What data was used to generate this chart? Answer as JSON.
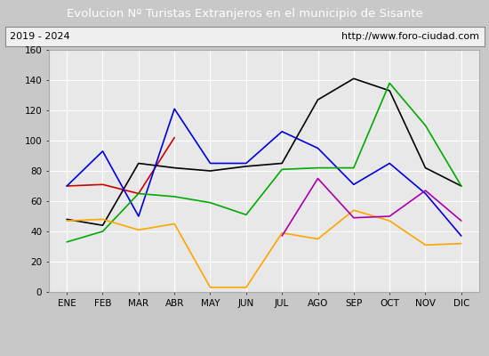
{
  "title": "Evolucion Nº Turistas Extranjeros en el municipio de Sisante",
  "subtitle_left": "2019 - 2024",
  "subtitle_right": "http://www.foro-ciudad.com",
  "months": [
    "ENE",
    "FEB",
    "MAR",
    "ABR",
    "MAY",
    "JUN",
    "JUL",
    "AGO",
    "SEP",
    "OCT",
    "NOV",
    "DIC"
  ],
  "ylim": [
    0,
    160
  ],
  "yticks": [
    0,
    20,
    40,
    60,
    80,
    100,
    120,
    140,
    160
  ],
  "series": {
    "2024": {
      "color": "#cc0000",
      "data": [
        70,
        71,
        65,
        102,
        null,
        null,
        null,
        null,
        null,
        null,
        null,
        null
      ]
    },
    "2023": {
      "color": "#000000",
      "data": [
        48,
        44,
        85,
        82,
        80,
        83,
        85,
        127,
        141,
        133,
        82,
        70
      ]
    },
    "2022": {
      "color": "#0000dd",
      "data": [
        70,
        93,
        50,
        121,
        85,
        85,
        106,
        95,
        71,
        85,
        65,
        37
      ]
    },
    "2021": {
      "color": "#00aa00",
      "data": [
        33,
        40,
        65,
        63,
        59,
        51,
        81,
        82,
        82,
        138,
        110,
        70
      ]
    },
    "2020": {
      "color": "#ffa500",
      "data": [
        47,
        48,
        41,
        45,
        3,
        3,
        39,
        35,
        54,
        47,
        31,
        32
      ]
    },
    "2019": {
      "color": "#aa00aa",
      "data": [
        null,
        null,
        null,
        null,
        null,
        null,
        37,
        75,
        49,
        50,
        67,
        47
      ]
    }
  },
  "title_bg": "#4472c4",
  "title_color": "#ffffff",
  "plot_bg": "#e8e8e8",
  "grid_color": "#ffffff",
  "fig_bg": "#c8c8c8",
  "subtitle_box_color": "#f0f0f0",
  "subtitle_border": "#888888"
}
